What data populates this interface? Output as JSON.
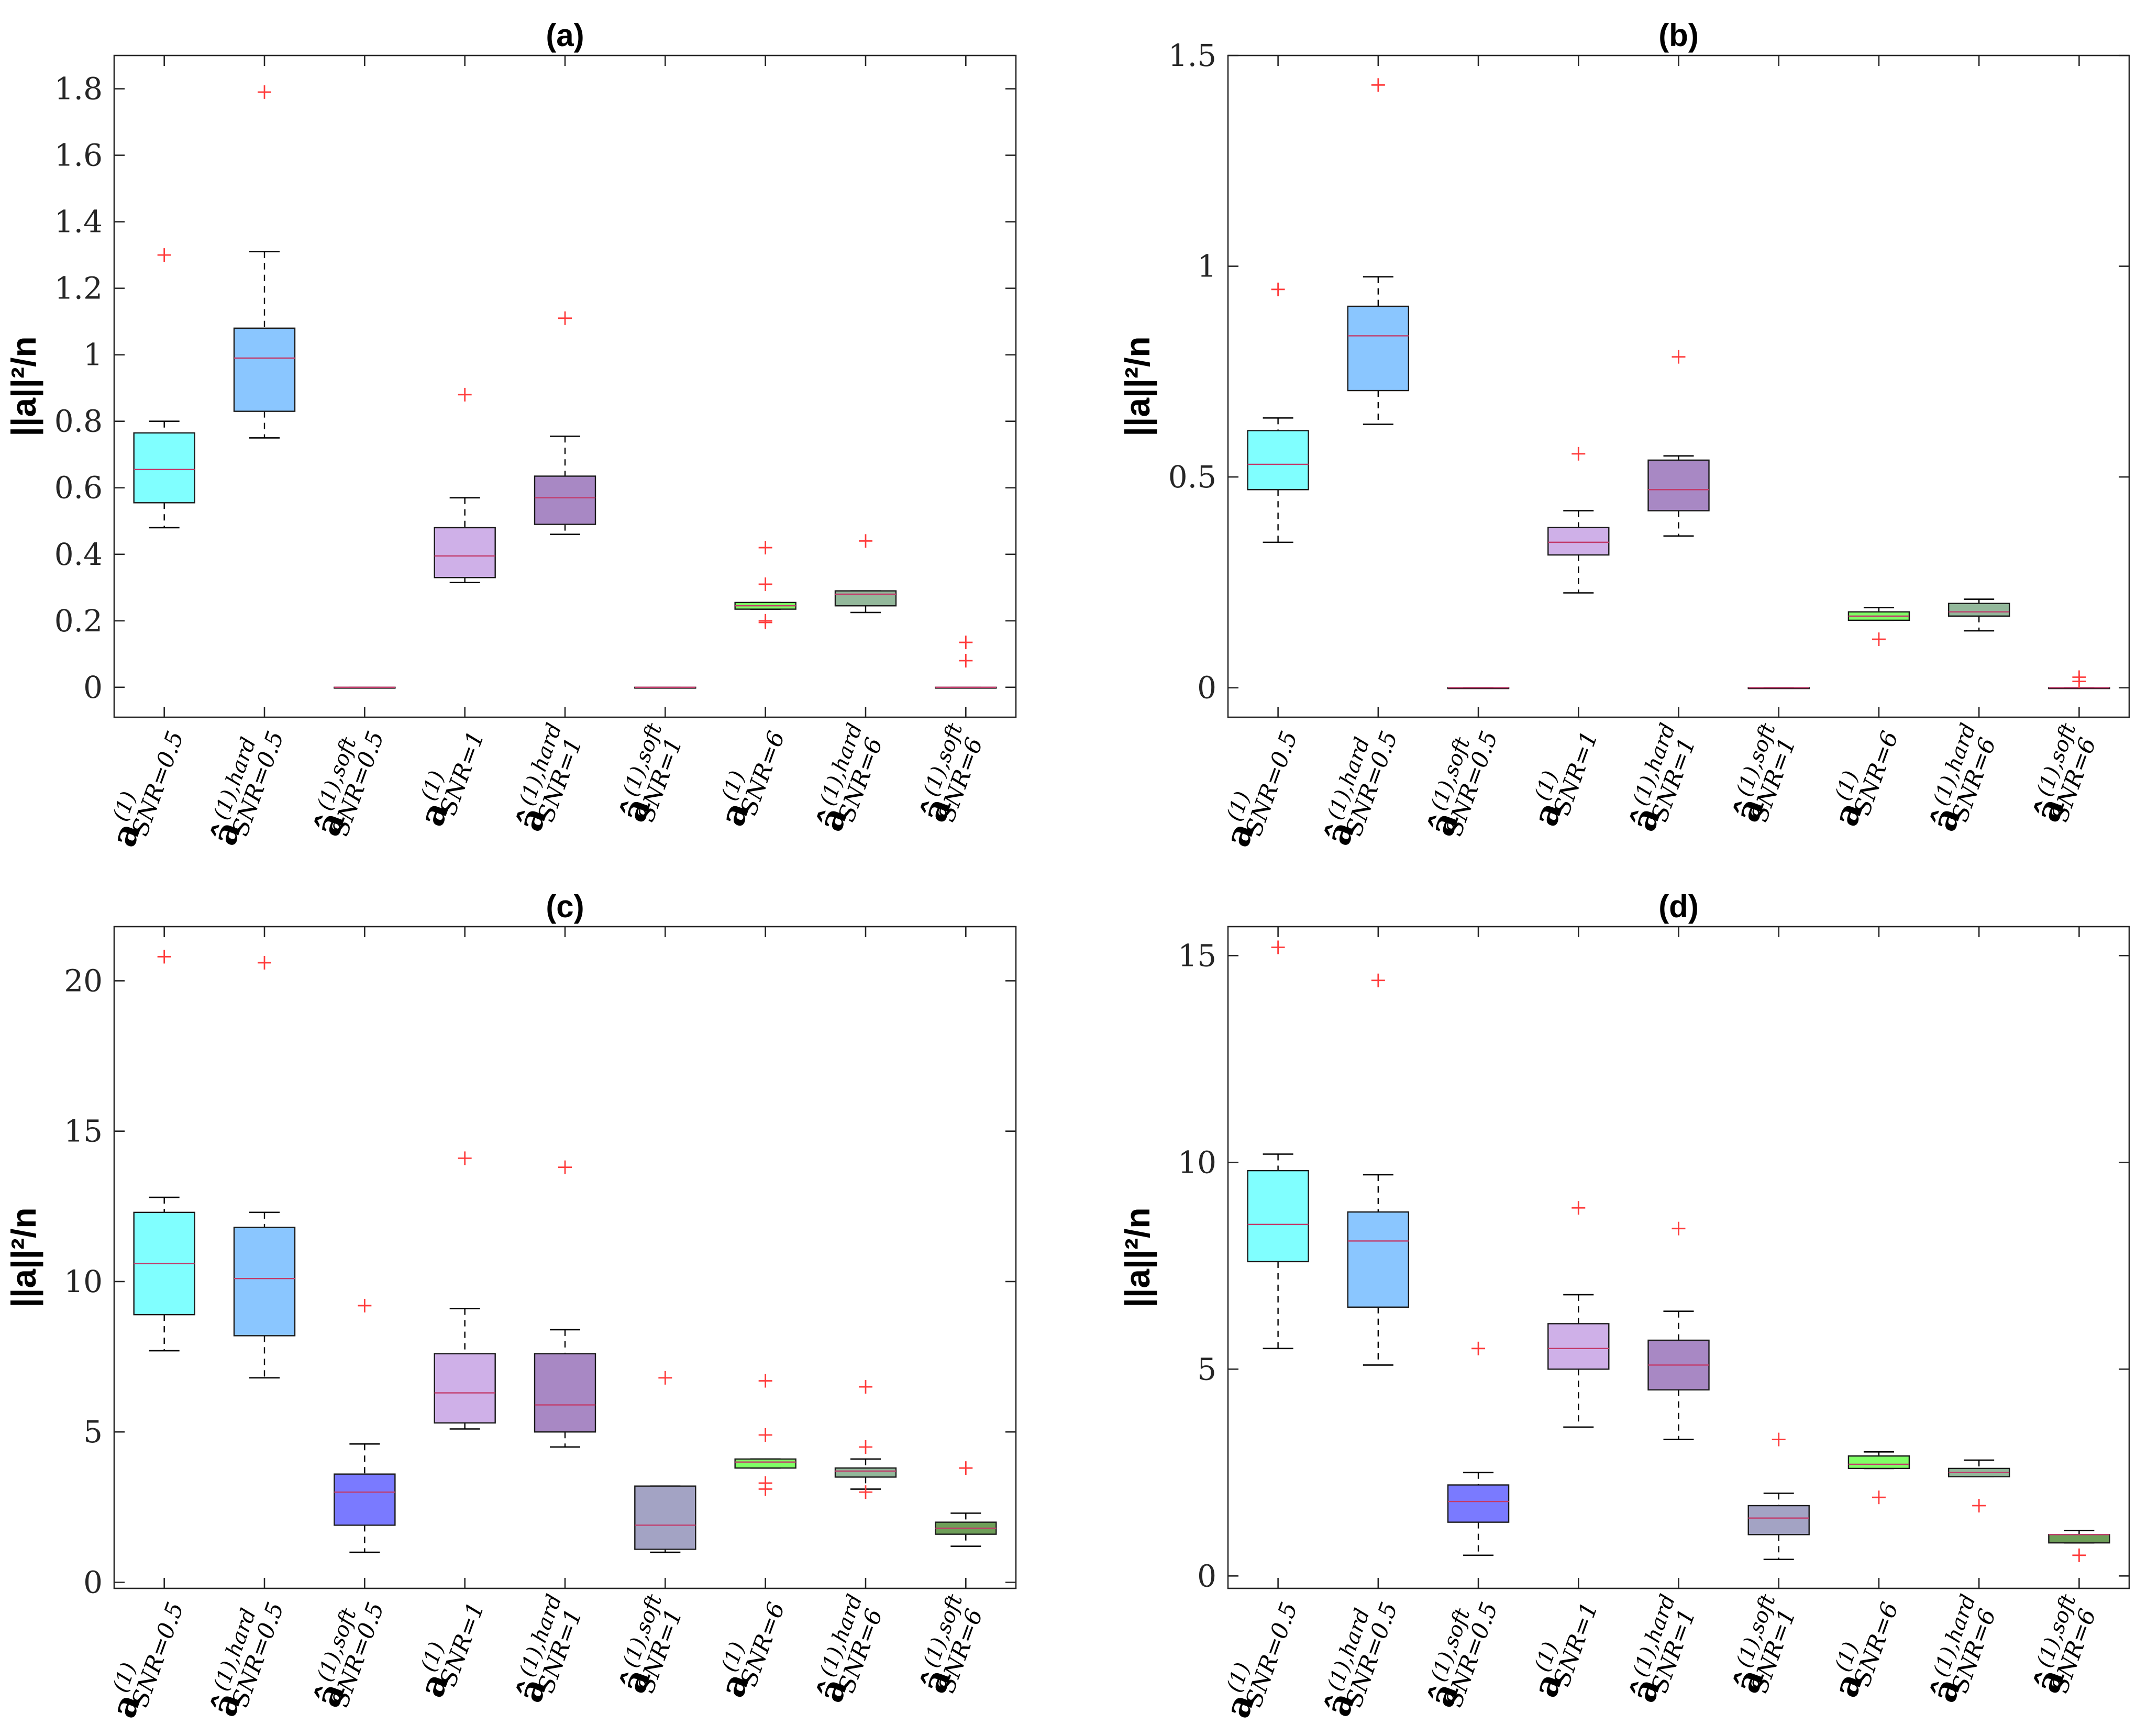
{
  "ylabel": "||a||²/n",
  "category_labels": [
    {
      "base": "a",
      "sup": "(1)",
      "sub": "SNR=0.5"
    },
    {
      "base": "â",
      "sup": "(1),hard",
      "sub": "SNR=0.5"
    },
    {
      "base": "â",
      "sup": "(1),soft",
      "sub": "SNR=0.5"
    },
    {
      "base": "a",
      "sup": "(1)",
      "sub": "SNR=1"
    },
    {
      "base": "â",
      "sup": "(1),hard",
      "sub": "SNR=1"
    },
    {
      "base": "â",
      "sup": "(1),soft",
      "sub": "SNR=1"
    },
    {
      "base": "a",
      "sup": "(1)",
      "sub": "SNR=6"
    },
    {
      "base": "â",
      "sup": "(1),hard",
      "sub": "SNR=6"
    },
    {
      "base": "â",
      "sup": "(1),soft",
      "sub": "SNR=6"
    }
  ],
  "colors": {
    "box_fills": [
      "#80ffff",
      "#8ac6ff",
      "#7a7aff",
      "#cfb0e8",
      "#a888c4",
      "#a3a3c4",
      "#80ff66",
      "#93b89b",
      "#6e9e58"
    ],
    "median": "#c23b6b",
    "outlier": "#ff3b3b",
    "axis": "#262626"
  },
  "chart_data": [
    {
      "type": "box",
      "title": "(a)",
      "ylabel": "||a||²/n",
      "ylim": [
        -0.09,
        1.9
      ],
      "yticks": [
        0,
        0.2,
        0.4,
        0.6,
        0.8,
        1,
        1.2,
        1.4,
        1.6,
        1.8
      ],
      "ytick_labels": [
        "0",
        "0.2",
        "0.4",
        "0.6",
        "0.8",
        "1",
        "1.2",
        "1.4",
        "1.6",
        "1.8"
      ],
      "boxes": [
        {
          "min": 0.48,
          "q1": 0.555,
          "median": 0.655,
          "q3": 0.765,
          "max": 0.8,
          "outliers": [
            1.3
          ]
        },
        {
          "min": 0.75,
          "q1": 0.83,
          "median": 0.99,
          "q3": 1.08,
          "max": 1.31,
          "outliers": [
            1.79
          ]
        },
        {
          "min": 0,
          "q1": 0,
          "median": 0,
          "q3": 0,
          "max": 0,
          "outliers": []
        },
        {
          "min": 0.315,
          "q1": 0.33,
          "median": 0.395,
          "q3": 0.48,
          "max": 0.57,
          "outliers": [
            0.88
          ]
        },
        {
          "min": 0.46,
          "q1": 0.49,
          "median": 0.57,
          "q3": 0.635,
          "max": 0.755,
          "outliers": [
            1.11
          ]
        },
        {
          "min": 0,
          "q1": 0,
          "median": 0,
          "q3": 0,
          "max": 0,
          "outliers": []
        },
        {
          "min": 0.235,
          "q1": 0.235,
          "median": 0.245,
          "q3": 0.255,
          "max": 0.255,
          "outliers": [
            0.42,
            0.31,
            0.2,
            0.195
          ]
        },
        {
          "min": 0.225,
          "q1": 0.245,
          "median": 0.28,
          "q3": 0.29,
          "max": 0.29,
          "outliers": [
            0.44
          ]
        },
        {
          "min": 0,
          "q1": 0,
          "median": 0,
          "q3": 0,
          "max": 0,
          "outliers": [
            0.135,
            0.08
          ]
        }
      ]
    },
    {
      "type": "box",
      "title": "(b)",
      "ylabel": "||a||²/n",
      "ylim": [
        -0.07,
        1.5
      ],
      "yticks": [
        0,
        0.5,
        1,
        1.5
      ],
      "ytick_labels": [
        "0",
        "0.5",
        "1",
        "1.5"
      ],
      "boxes": [
        {
          "min": 0.345,
          "q1": 0.47,
          "median": 0.53,
          "q3": 0.61,
          "max": 0.64,
          "outliers": [
            0.945
          ]
        },
        {
          "min": 0.625,
          "q1": 0.705,
          "median": 0.835,
          "q3": 0.905,
          "max": 0.975,
          "outliers": [
            1.43
          ]
        },
        {
          "min": 0,
          "q1": 0,
          "median": 0,
          "q3": 0,
          "max": 0,
          "outliers": []
        },
        {
          "min": 0.225,
          "q1": 0.315,
          "median": 0.345,
          "q3": 0.38,
          "max": 0.42,
          "outliers": [
            0.555
          ]
        },
        {
          "min": 0.36,
          "q1": 0.42,
          "median": 0.47,
          "q3": 0.54,
          "max": 0.55,
          "outliers": [
            0.785
          ]
        },
        {
          "min": 0,
          "q1": 0,
          "median": 0,
          "q3": 0,
          "max": 0,
          "outliers": []
        },
        {
          "min": 0.16,
          "q1": 0.16,
          "median": 0.17,
          "q3": 0.18,
          "max": 0.19,
          "outliers": [
            0.115
          ]
        },
        {
          "min": 0.135,
          "q1": 0.17,
          "median": 0.18,
          "q3": 0.2,
          "max": 0.21,
          "outliers": []
        },
        {
          "min": 0,
          "q1": 0,
          "median": 0,
          "q3": 0,
          "max": 0,
          "outliers": [
            0.025,
            0.015
          ]
        }
      ]
    },
    {
      "type": "box",
      "title": "(c)",
      "ylabel": "||a||²/n",
      "ylim": [
        -0.2,
        21.8
      ],
      "yticks": [
        0,
        5,
        10,
        15,
        20
      ],
      "ytick_labels": [
        "0",
        "5",
        "10",
        "15",
        "20"
      ],
      "boxes": [
        {
          "min": 7.7,
          "q1": 8.9,
          "median": 10.6,
          "q3": 12.3,
          "max": 12.8,
          "outliers": [
            20.8
          ]
        },
        {
          "min": 6.8,
          "q1": 8.2,
          "median": 10.1,
          "q3": 11.8,
          "max": 12.3,
          "outliers": [
            20.6
          ]
        },
        {
          "min": 1.0,
          "q1": 1.9,
          "median": 3.0,
          "q3": 3.6,
          "max": 4.6,
          "outliers": [
            9.2
          ]
        },
        {
          "min": 5.1,
          "q1": 5.3,
          "median": 6.3,
          "q3": 7.6,
          "max": 9.1,
          "outliers": [
            14.1
          ]
        },
        {
          "min": 4.5,
          "q1": 5.0,
          "median": 5.9,
          "q3": 7.6,
          "max": 8.4,
          "outliers": [
            13.8
          ]
        },
        {
          "min": 1.0,
          "q1": 1.1,
          "median": 1.9,
          "q3": 3.2,
          "max": 3.2,
          "outliers": [
            6.8
          ]
        },
        {
          "min": 3.8,
          "q1": 3.8,
          "median": 4.0,
          "q3": 4.1,
          "max": 4.1,
          "outliers": [
            6.7,
            4.9,
            3.3,
            3.1
          ]
        },
        {
          "min": 3.1,
          "q1": 3.5,
          "median": 3.7,
          "q3": 3.8,
          "max": 4.1,
          "outliers": [
            6.5,
            4.5,
            3.0
          ]
        },
        {
          "min": 1.2,
          "q1": 1.6,
          "median": 1.8,
          "q3": 2.0,
          "max": 2.3,
          "outliers": [
            3.8
          ]
        }
      ]
    },
    {
      "type": "box",
      "title": "(d)",
      "ylabel": "||a||²/n",
      "ylim": [
        -0.3,
        15.7
      ],
      "yticks": [
        0,
        5,
        10,
        15
      ],
      "ytick_labels": [
        "0",
        "5",
        "10",
        "15"
      ],
      "boxes": [
        {
          "min": 5.5,
          "q1": 7.6,
          "median": 8.5,
          "q3": 9.8,
          "max": 10.2,
          "outliers": [
            15.2
          ]
        },
        {
          "min": 5.1,
          "q1": 6.5,
          "median": 8.1,
          "q3": 8.8,
          "max": 9.7,
          "outliers": [
            14.4
          ]
        },
        {
          "min": 0.5,
          "q1": 1.3,
          "median": 1.8,
          "q3": 2.2,
          "max": 2.5,
          "outliers": [
            5.5
          ]
        },
        {
          "min": 3.6,
          "q1": 5.0,
          "median": 5.5,
          "q3": 6.1,
          "max": 6.8,
          "outliers": [
            8.9
          ]
        },
        {
          "min": 3.3,
          "q1": 4.5,
          "median": 5.1,
          "q3": 5.7,
          "max": 6.4,
          "outliers": [
            8.4
          ]
        },
        {
          "min": 0.4,
          "q1": 1.0,
          "median": 1.4,
          "q3": 1.7,
          "max": 2.0,
          "outliers": [
            3.3
          ]
        },
        {
          "min": 2.6,
          "q1": 2.6,
          "median": 2.7,
          "q3": 2.9,
          "max": 3.0,
          "outliers": [
            1.9
          ]
        },
        {
          "min": 2.4,
          "q1": 2.4,
          "median": 2.5,
          "q3": 2.6,
          "max": 2.8,
          "outliers": [
            1.7
          ]
        },
        {
          "min": 0.8,
          "q1": 0.8,
          "median": 1.0,
          "q3": 1.0,
          "max": 1.1,
          "outliers": [
            0.5
          ]
        }
      ]
    }
  ]
}
